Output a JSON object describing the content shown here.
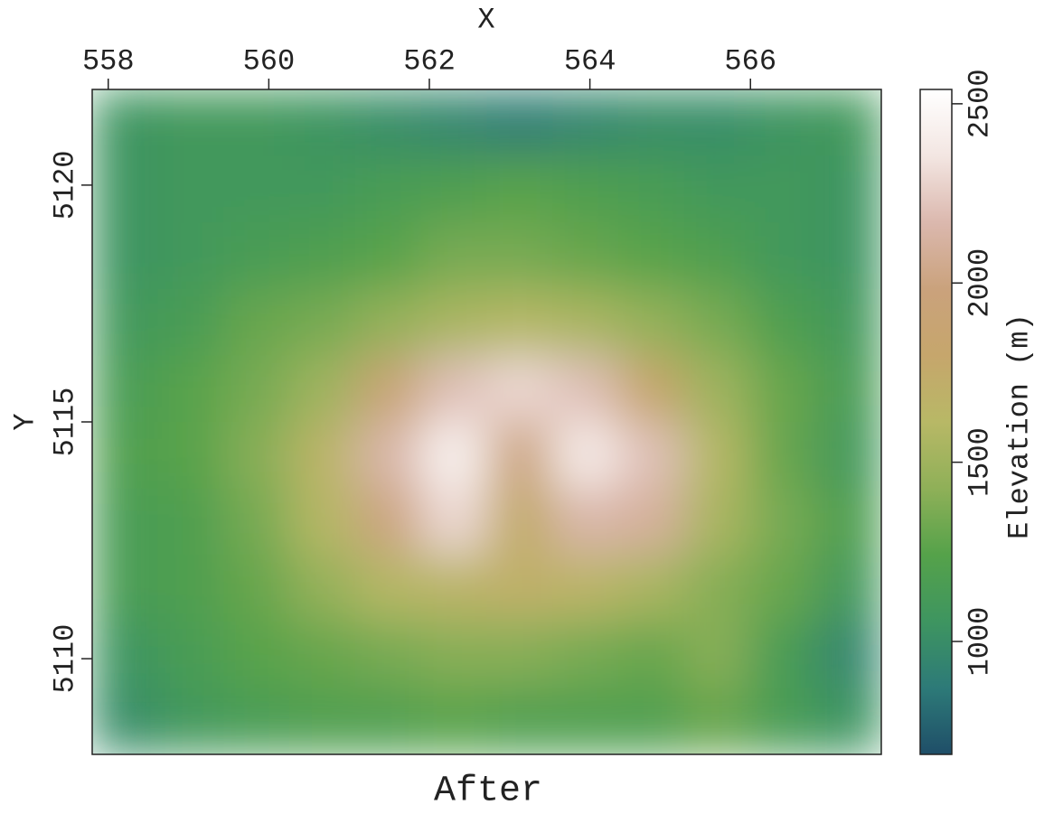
{
  "chart_data": {
    "type": "heatmap",
    "title": "After",
    "xlabel": "X",
    "ylabel": "Y",
    "colorbar_label": "Elevation (m)",
    "xlim": [
      557.8,
      567.63
    ],
    "ylim": [
      5107.98,
      5122.02
    ],
    "xticks": [
      558,
      560,
      562,
      564,
      566
    ],
    "yticks": [
      5110,
      5115,
      5120
    ],
    "clim": [
      685,
      2540
    ],
    "cticks": [
      1000,
      1500,
      2000,
      2500
    ],
    "colormap": [
      "#1f4e68",
      "#2d7a78",
      "#3e9560",
      "#55a24a",
      "#8fb058",
      "#b8b866",
      "#c6a66c",
      "#caa27c",
      "#dbb8ae",
      "#f3e6e2",
      "#ffffff"
    ],
    "z": [
      [
        1050,
        1100,
        1100,
        1050,
        1000,
        950,
        900,
        950,
        1000,
        1000,
        1050,
        1100
      ],
      [
        1050,
        1100,
        1100,
        1100,
        1150,
        1200,
        1250,
        1200,
        1150,
        1100,
        1100,
        1050
      ],
      [
        1050,
        1100,
        1150,
        1200,
        1250,
        1350,
        1350,
        1300,
        1250,
        1200,
        1100,
        1050
      ],
      [
        1100,
        1150,
        1300,
        1350,
        1450,
        1550,
        1600,
        1550,
        1450,
        1350,
        1200,
        1100
      ],
      [
        1150,
        1250,
        1350,
        1500,
        1900,
        2200,
        2300,
        2200,
        1800,
        1500,
        1300,
        1150
      ],
      [
        1200,
        1250,
        1400,
        1650,
        2150,
        2450,
        2000,
        2400,
        2200,
        1600,
        1300,
        1100
      ],
      [
        1150,
        1200,
        1350,
        1600,
        2000,
        2300,
        1750,
        2150,
        2100,
        1550,
        1350,
        1200
      ],
      [
        1150,
        1200,
        1300,
        1450,
        1600,
        1650,
        1700,
        1650,
        1550,
        1400,
        1300,
        1100
      ],
      [
        1050,
        1150,
        1250,
        1300,
        1350,
        1400,
        1400,
        1350,
        1300,
        1400,
        1150,
        950
      ],
      [
        1000,
        1100,
        1150,
        1200,
        1200,
        1250,
        1200,
        1200,
        1200,
        1300,
        1150,
        1050
      ]
    ]
  }
}
